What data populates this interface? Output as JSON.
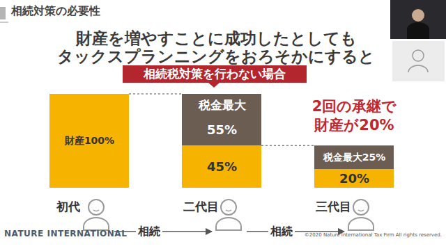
{
  "header": "相続対策の必要性",
  "title": [
    "財産を増やすことに成功したとしても",
    "タックスプランニングをおろそかにすると"
  ],
  "banner": "相続税対策を行わない場合",
  "callout": [
    "2回の承継で",
    "財産が20%"
  ],
  "transitions": [
    "相続",
    "相続"
  ],
  "logo": "NATURE INTERNATIONAL",
  "copyright": "©2020 Nature International Tax Firm All rights reserved.",
  "chart_data": {
    "type": "bar",
    "stacked": true,
    "data_labels": true,
    "tick_labels": false,
    "categories": [
      "初代",
      "二代目",
      "三代目"
    ],
    "ylim": [
      0,
      100
    ],
    "series": [
      {
        "color": "#f6b400",
        "values": [
          100,
          45,
          20
        ],
        "value_labels": [
          "財産100%",
          "45%",
          "20%"
        ]
      },
      {
        "color": "#6b5d52",
        "values": [
          0,
          55,
          25
        ],
        "value_labels": [
          null,
          "55%",
          "税金最大25%"
        ]
      }
    ],
    "annotations": [
      {
        "text": "税金最大",
        "category": "二代目"
      }
    ]
  }
}
